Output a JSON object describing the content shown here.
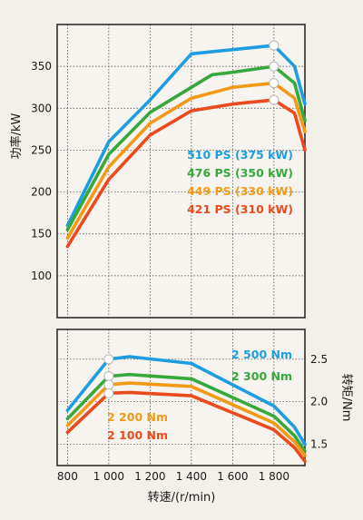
{
  "chart_data": [
    {
      "type": "line",
      "ylabel": "功率/kW",
      "yticks": [
        100,
        150,
        200,
        250,
        300,
        350
      ],
      "ylim": [
        50,
        400
      ],
      "xlim": [
        750,
        1950
      ],
      "grid": true,
      "colors": {
        "s1": "#1e9de0",
        "s2": "#37a83c",
        "s3": "#f29a17",
        "s4": "#ea4a1c"
      },
      "series": [
        {
          "name": "510 PS (375 kW)",
          "marker_x": 1800,
          "points": [
            [
              800,
              160
            ],
            [
              1000,
              260
            ],
            [
              1200,
              310
            ],
            [
              1400,
              365
            ],
            [
              1600,
              370
            ],
            [
              1800,
              375
            ],
            [
              1900,
              350
            ],
            [
              1950,
              305
            ]
          ]
        },
        {
          "name": "476 PS (350 kW)",
          "marker_x": 1800,
          "points": [
            [
              800,
              155
            ],
            [
              1000,
              245
            ],
            [
              1200,
              295
            ],
            [
              1400,
              325
            ],
            [
              1500,
              340
            ],
            [
              1600,
              343
            ],
            [
              1800,
              350
            ],
            [
              1900,
              330
            ],
            [
              1950,
              285
            ]
          ]
        },
        {
          "name": "449 PS (330 kW)",
          "marker_x": 1800,
          "points": [
            [
              800,
              145
            ],
            [
              1000,
              230
            ],
            [
              1200,
              282
            ],
            [
              1400,
              312
            ],
            [
              1600,
              325
            ],
            [
              1800,
              330
            ],
            [
              1900,
              312
            ],
            [
              1950,
              272
            ]
          ]
        },
        {
          "name": "421 PS (310 kW)",
          "marker_x": 1800,
          "points": [
            [
              800,
              135
            ],
            [
              1000,
              215
            ],
            [
              1200,
              268
            ],
            [
              1400,
              297
            ],
            [
              1600,
              305
            ],
            [
              1800,
              310
            ],
            [
              1900,
              294
            ],
            [
              1950,
              250
            ]
          ]
        }
      ]
    },
    {
      "type": "line",
      "xlabel": "转速/(r/min)",
      "ylabel": "转矩/Nm",
      "xticks": [
        800,
        1000,
        1200,
        1400,
        1600,
        1800
      ],
      "xtick_labels": [
        "800",
        "1 000",
        "1 200",
        "1 400",
        "1 600",
        "1 800"
      ],
      "yticks": [
        1.5,
        2.0,
        2.5
      ],
      "yticks_labels": [
        "1.5",
        "2.0",
        "2.5"
      ],
      "ylim": [
        1.25,
        2.85
      ],
      "xlim": [
        750,
        1950
      ],
      "grid": true,
      "series": [
        {
          "name": "2 500 Nm",
          "marker_x": 1000,
          "points": [
            [
              800,
              1.9
            ],
            [
              1000,
              2.5
            ],
            [
              1100,
              2.53
            ],
            [
              1400,
              2.45
            ],
            [
              1800,
              1.95
            ],
            [
              1900,
              1.7
            ],
            [
              1950,
              1.5
            ]
          ]
        },
        {
          "name": "2 300 Nm",
          "marker_x": 1000,
          "points": [
            [
              800,
              1.8
            ],
            [
              1000,
              2.3
            ],
            [
              1100,
              2.32
            ],
            [
              1400,
              2.27
            ],
            [
              1800,
              1.83
            ],
            [
              1900,
              1.6
            ],
            [
              1950,
              1.42
            ]
          ]
        },
        {
          "name": "2 200 Nm",
          "marker_x": 1000,
          "points": [
            [
              800,
              1.72
            ],
            [
              1000,
              2.2
            ],
            [
              1100,
              2.22
            ],
            [
              1400,
              2.18
            ],
            [
              1800,
              1.75
            ],
            [
              1900,
              1.53
            ],
            [
              1950,
              1.37
            ]
          ]
        },
        {
          "name": "2 100 Nm",
          "marker_x": 1000,
          "points": [
            [
              800,
              1.64
            ],
            [
              1000,
              2.1
            ],
            [
              1100,
              2.11
            ],
            [
              1400,
              2.07
            ],
            [
              1800,
              1.67
            ],
            [
              1900,
              1.46
            ],
            [
              1950,
              1.3
            ]
          ]
        }
      ]
    }
  ]
}
